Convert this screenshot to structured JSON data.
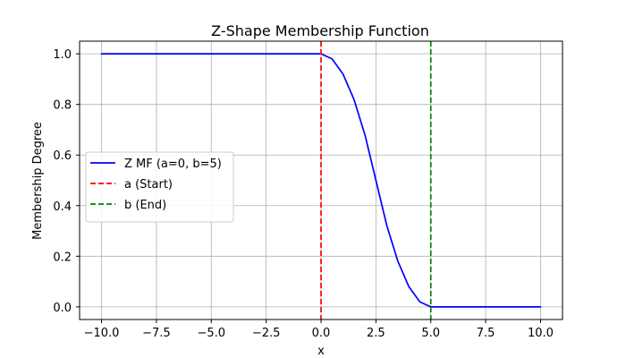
{
  "chart_data": {
    "type": "line",
    "title": "Z-Shape Membership Function",
    "xlabel": "x",
    "ylabel": "Membership Degree",
    "xlim": [
      -11,
      11
    ],
    "ylim": [
      -0.05,
      1.05
    ],
    "grid": true,
    "legend_position": "center-left",
    "x_ticks": [
      -10.0,
      -7.5,
      -5.0,
      -2.5,
      0.0,
      2.5,
      5.0,
      7.5,
      10.0
    ],
    "x_tick_labels": [
      "−10.0",
      "−7.5",
      "−5.0",
      "−2.5",
      "0.0",
      "2.5",
      "5.0",
      "7.5",
      "10.0"
    ],
    "y_ticks": [
      0.0,
      0.2,
      0.4,
      0.6,
      0.8,
      1.0
    ],
    "y_tick_labels": [
      "0.0",
      "0.2",
      "0.4",
      "0.6",
      "0.8",
      "1.0"
    ],
    "series": [
      {
        "name": "Z MF (a=0, b=5)",
        "color": "#0000ff",
        "style": "solid",
        "x": [
          -10,
          -7.5,
          -5,
          -2.5,
          0,
          0.5,
          1,
          1.5,
          2,
          2.5,
          3,
          3.5,
          4,
          4.5,
          5,
          7.5,
          10
        ],
        "y": [
          1.0,
          1.0,
          1.0,
          1.0,
          1.0,
          0.98,
          0.92,
          0.82,
          0.68,
          0.5,
          0.32,
          0.18,
          0.08,
          0.02,
          0.0,
          0.0,
          0.0
        ]
      }
    ],
    "vlines": [
      {
        "name": "a (Start)",
        "x": 0,
        "color": "#ff0000",
        "style": "dashed"
      },
      {
        "name": "b (End)",
        "x": 5,
        "color": "#008000",
        "style": "dashed"
      }
    ]
  }
}
